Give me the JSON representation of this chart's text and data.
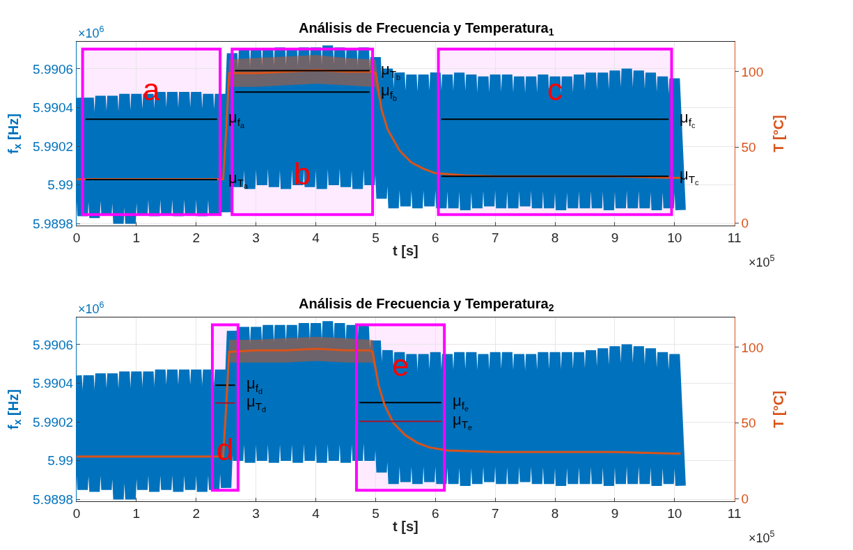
{
  "chart_data": [
    {
      "type": "line",
      "title": "Análisis de Frecuencia y Temperatura$_{1}$",
      "xlabel": "t [s]",
      "ylabel": "f$_{x}$ [Hz]",
      "y2label": "T [°C]",
      "grid": true,
      "xlim": [
        0,
        11
      ],
      "xticks": [
        0,
        1,
        2,
        3,
        4,
        5,
        6,
        7,
        8,
        9,
        10,
        11
      ],
      "ylim": [
        5.98979,
        5.99074
      ],
      "yticks": [
        5.9898,
        5.99,
        5.9902,
        5.9904,
        5.9906
      ],
      "y2lim": [
        -1.5,
        119.7
      ],
      "y2ticks": [
        0,
        50,
        100
      ],
      "series": [
        {
          "type": "line",
          "color": "#0072bd",
          "x": [
            0,
            0.1,
            0.2,
            0.3,
            0.4,
            0.5,
            0.6,
            0.7,
            0.8,
            0.9,
            1,
            1.1,
            1.2,
            1.3,
            1.4,
            1.5,
            1.6,
            1.7,
            1.8,
            1.9,
            2,
            2.1,
            2.2,
            2.3,
            2.4,
            2.5,
            2.6,
            2.7,
            2.8,
            2.9,
            3,
            3.1,
            3.2,
            3.3,
            3.4,
            3.5,
            3.6,
            3.7,
            3.8,
            3.9,
            4,
            4.1,
            4.2,
            4.3,
            4.4,
            4.5,
            4.6,
            4.7,
            4.8,
            4.9,
            5,
            5.1,
            5.2,
            5.3,
            5.4,
            5.5,
            5.6,
            5.7,
            5.8,
            5.9,
            6,
            6.1,
            6.2,
            6.3,
            6.4,
            6.5,
            6.6,
            6.7,
            6.8,
            6.9,
            7,
            7.1,
            7.2,
            7.3,
            7.4,
            7.5,
            7.6,
            7.7,
            7.8,
            7.9,
            8,
            8.1,
            8.2,
            8.3,
            8.4,
            8.5,
            8.6,
            8.7,
            8.8,
            8.9,
            9,
            9.1,
            9.2,
            9.3,
            9.4,
            9.5,
            9.6,
            9.7,
            9.8,
            9.9,
            10,
            10.1
          ],
          "values": [
            5.99045,
            5.98984,
            5.99045,
            5.98983,
            5.99046,
            5.98985,
            5.99046,
            5.9898,
            5.99047,
            5.9898,
            5.99047,
            5.98985,
            5.99047,
            5.98984,
            5.99048,
            5.98985,
            5.99048,
            5.98984,
            5.99048,
            5.98985,
            5.99048,
            5.98984,
            5.99047,
            5.98985,
            5.99047,
            5.98986,
            5.99068,
            5.98999,
            5.9907,
            5.98998,
            5.9907,
            5.99,
            5.9907,
            5.98999,
            5.99071,
            5.98998,
            5.9907,
            5.99,
            5.99071,
            5.98999,
            5.99071,
            5.98998,
            5.99072,
            5.99,
            5.99071,
            5.98999,
            5.9907,
            5.98998,
            5.99071,
            5.99,
            5.99066,
            5.98993,
            5.9906,
            5.98988,
            5.99058,
            5.98989,
            5.99057,
            5.98988,
            5.99057,
            5.98989,
            5.99058,
            5.98988,
            5.99057,
            5.98988,
            5.99058,
            5.98987,
            5.99057,
            5.98988,
            5.99056,
            5.98989,
            5.99057,
            5.98988,
            5.99057,
            5.98988,
            5.99056,
            5.98989,
            5.99056,
            5.98988,
            5.99057,
            5.98988,
            5.99056,
            5.98987,
            5.99056,
            5.98988,
            5.99057,
            5.98988,
            5.99058,
            5.98988,
            5.99058,
            5.98987,
            5.99059,
            5.98988,
            5.9906,
            5.98988,
            5.99059,
            5.98988,
            5.99058,
            5.98987,
            5.99056,
            5.98988,
            5.99055,
            5.98987
          ]
        },
        {
          "type": "line",
          "axis": "y2",
          "color": "#d95319",
          "x": [
            0,
            1,
            2,
            2.45,
            2.5,
            2.55,
            3,
            3.5,
            4,
            4.5,
            4.95,
            5.0,
            5.1,
            5.2,
            5.4,
            5.6,
            5.8,
            6,
            6.5,
            7,
            8,
            9,
            10,
            10.1
          ],
          "values": [
            29,
            29,
            29,
            29,
            60,
            99,
            99,
            100,
            101,
            100,
            100,
            99,
            75,
            62,
            48,
            40,
            36,
            33,
            31.5,
            31,
            31,
            31,
            30,
            30
          ],
          "lower": [
            29,
            29,
            29,
            29,
            60,
            90,
            90,
            91,
            92,
            91,
            90,
            90,
            75,
            62,
            48,
            40,
            36,
            33,
            31.5,
            31,
            31,
            31,
            30,
            30
          ],
          "upper": [
            29,
            29,
            29,
            29,
            60,
            108,
            109,
            110,
            111,
            109,
            108,
            108,
            75,
            62,
            48,
            40,
            36,
            33,
            31.5,
            31,
            31,
            31,
            30,
            30
          ]
        },
        {
          "type": "line",
          "name": "μ$_{f}$$_{a}$",
          "color": "#000000",
          "x": [
            0.15,
            2.35
          ],
          "values": [
            5.99034,
            5.99034
          ]
        },
        {
          "type": "line",
          "name": "μ$_{T}$$_{a}$",
          "axis": "y2",
          "color": "#000000",
          "x": [
            0.15,
            2.35
          ],
          "values": [
            28.8,
            28.8
          ]
        },
        {
          "type": "line",
          "name": "μ$_{T}$$_{b}$",
          "axis": "y2",
          "color": "#000000",
          "x": [
            2.65,
            4.9
          ],
          "values": [
            100.6,
            100.6
          ]
        },
        {
          "type": "line",
          "name": "μ$_{f}$$_{b}$",
          "color": "#000000",
          "x": [
            2.65,
            4.9
          ],
          "values": [
            5.99048,
            5.99048
          ]
        },
        {
          "type": "line",
          "name": "μ$_{f}$$_{c}$",
          "color": "#000000",
          "x": [
            6.1,
            9.9
          ],
          "values": [
            5.99034,
            5.99034
          ]
        },
        {
          "type": "line",
          "name": "μ$_{T}$$_{c}$",
          "axis": "y2",
          "color": "#000000",
          "x": [
            6.1,
            9.9
          ],
          "values": [
            31,
            31
          ]
        }
      ],
      "bands": [
        {
          "axis": "x",
          "from": 0.1,
          "to": 2.4,
          "label": "a",
          "color": "#ff00ff"
        },
        {
          "axis": "x",
          "from": 2.6,
          "to": 4.95,
          "label": "b",
          "color": "#ff00ff"
        },
        {
          "axis": "x",
          "from": 6.05,
          "to": 9.95,
          "label": "c",
          "color": "#ff00ff"
        }
      ],
      "annotations": [
        "×10$^{6}$",
        "×10$^{5}$"
      ]
    },
    {
      "type": "line",
      "title": "Análisis de Frecuencia y Temperatura$_{2}$",
      "xlabel": "t [s]",
      "ylabel": "f$_{x}$ [Hz]",
      "y2label": "T [°C]",
      "grid": true,
      "xlim": [
        0,
        11
      ],
      "xticks": [
        0,
        1,
        2,
        3,
        4,
        5,
        6,
        7,
        8,
        9,
        10,
        11
      ],
      "ylim": [
        5.98979,
        5.99074
      ],
      "yticks": [
        5.9898,
        5.99,
        5.9902,
        5.9904,
        5.9906
      ],
      "y2lim": [
        -1.5,
        119.7
      ],
      "y2ticks": [
        0,
        50,
        100
      ],
      "series": [
        {
          "type": "line",
          "color": "#0072bd",
          "x": [
            0,
            0.1,
            0.2,
            0.3,
            0.4,
            0.5,
            0.6,
            0.7,
            0.8,
            0.9,
            1,
            1.1,
            1.2,
            1.3,
            1.4,
            1.5,
            1.6,
            1.7,
            1.8,
            1.9,
            2,
            2.1,
            2.2,
            2.3,
            2.4,
            2.5,
            2.6,
            2.7,
            2.8,
            2.9,
            3,
            3.1,
            3.2,
            3.3,
            3.4,
            3.5,
            3.6,
            3.7,
            3.8,
            3.9,
            4,
            4.1,
            4.2,
            4.3,
            4.4,
            4.5,
            4.6,
            4.7,
            4.8,
            4.9,
            5,
            5.1,
            5.2,
            5.3,
            5.4,
            5.5,
            5.6,
            5.7,
            5.8,
            5.9,
            6,
            6.1,
            6.2,
            6.3,
            6.4,
            6.5,
            6.6,
            6.7,
            6.8,
            6.9,
            7,
            7.1,
            7.2,
            7.3,
            7.4,
            7.5,
            7.6,
            7.7,
            7.8,
            7.9,
            8,
            8.1,
            8.2,
            8.3,
            8.4,
            8.5,
            8.6,
            8.7,
            8.8,
            8.9,
            9,
            9.1,
            9.2,
            9.3,
            9.4,
            9.5,
            9.6,
            9.7,
            9.8,
            9.9,
            10,
            10.1
          ],
          "values": [
            5.99044,
            5.98985,
            5.99044,
            5.98984,
            5.99045,
            5.98985,
            5.99045,
            5.9898,
            5.99046,
            5.9898,
            5.99046,
            5.98985,
            5.99046,
            5.98984,
            5.99047,
            5.98985,
            5.99047,
            5.98984,
            5.99047,
            5.98985,
            5.99047,
            5.98984,
            5.99047,
            5.98985,
            5.99047,
            5.98986,
            5.99067,
            5.99,
            5.99069,
            5.98999,
            5.99069,
            5.99,
            5.9907,
            5.98999,
            5.9907,
            5.99,
            5.9907,
            5.98999,
            5.99071,
            5.99,
            5.99071,
            5.98999,
            5.99072,
            5.99,
            5.99071,
            5.98999,
            5.9907,
            5.99,
            5.9907,
            5.99,
            5.99062,
            5.98994,
            5.99057,
            5.98988,
            5.99056,
            5.98989,
            5.99055,
            5.98988,
            5.99055,
            5.98989,
            5.99056,
            5.98988,
            5.99055,
            5.98988,
            5.99056,
            5.98987,
            5.99056,
            5.98988,
            5.99055,
            5.98989,
            5.99056,
            5.98988,
            5.99056,
            5.98988,
            5.99055,
            5.98989,
            5.99055,
            5.98988,
            5.99056,
            5.98988,
            5.99056,
            5.98987,
            5.99056,
            5.98988,
            5.99056,
            5.98988,
            5.99057,
            5.98988,
            5.99058,
            5.98987,
            5.99059,
            5.98988,
            5.9906,
            5.98988,
            5.99059,
            5.98988,
            5.99058,
            5.98987,
            5.99056,
            5.98988,
            5.99055,
            5.98987
          ]
        },
        {
          "type": "line",
          "axis": "y2",
          "color": "#d95319",
          "x": [
            0,
            1,
            2,
            2.45,
            2.5,
            2.55,
            3,
            3.5,
            4,
            4.5,
            4.9,
            4.95,
            5.05,
            5.15,
            5.3,
            5.5,
            5.7,
            5.9,
            6.2,
            7,
            8,
            9,
            10,
            10.1
          ],
          "values": [
            28,
            28,
            28,
            28,
            60,
            97,
            98,
            98,
            99,
            98,
            98,
            97,
            75,
            62,
            50,
            42,
            37,
            34,
            32,
            31,
            31,
            31,
            30,
            30
          ],
          "lower": [
            28,
            28,
            28,
            28,
            60,
            90,
            90,
            90,
            91,
            90,
            90,
            90,
            75,
            62,
            50,
            42,
            37,
            34,
            32,
            31,
            31,
            31,
            30,
            30
          ],
          "upper": [
            28,
            28,
            28,
            28,
            60,
            105,
            105,
            106,
            107,
            106,
            105,
            105,
            75,
            62,
            50,
            42,
            37,
            34,
            32,
            31,
            31,
            31,
            30,
            30
          ]
        },
        {
          "type": "line",
          "name": "μ$_{f}$$_{d}$",
          "color": "#000000",
          "x": [
            2.32,
            2.65
          ],
          "values": [
            5.99039,
            5.99039
          ]
        },
        {
          "type": "line",
          "name": "μ$_{T}$$_{d}$",
          "axis": "y2",
          "color": "#a2142f",
          "x": [
            2.32,
            2.65
          ],
          "values": [
            63.3,
            63.3
          ]
        },
        {
          "type": "line",
          "name": "μ$_{f}$$_{e}$",
          "color": "#000000",
          "x": [
            4.73,
            6.1
          ],
          "values": [
            5.9903,
            5.9903
          ]
        },
        {
          "type": "line",
          "name": "μ$_{T}$$_{e}$",
          "axis": "y2",
          "color": "#a2142f",
          "x": [
            4.73,
            6.1
          ],
          "values": [
            51.2,
            51.2
          ]
        }
      ],
      "bands": [
        {
          "axis": "x",
          "from": 2.27,
          "to": 2.7,
          "label": "d",
          "color": "#ff00ff"
        },
        {
          "axis": "x",
          "from": 4.68,
          "to": 6.15,
          "label": "e",
          "color": "#ff00ff"
        }
      ],
      "annotations": [
        "×10$^{6}$",
        "×10$^{5}$"
      ]
    }
  ]
}
